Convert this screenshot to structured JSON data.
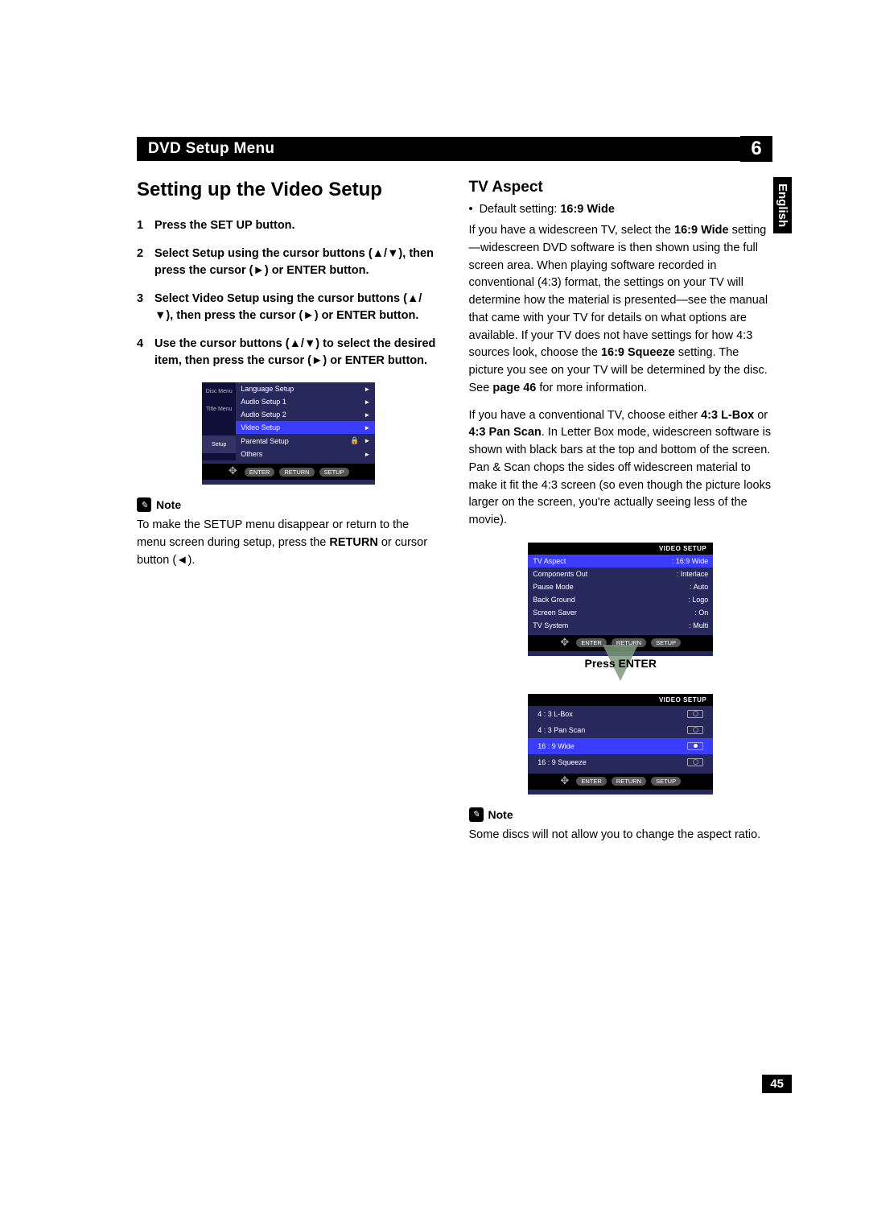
{
  "header": {
    "title": "DVD Setup Menu",
    "chapter_number": "6"
  },
  "lang_tab": "English",
  "page_number": "45",
  "left": {
    "section_title": "Setting up the Video Setup",
    "steps": [
      {
        "text_before": "Press the SET UP button."
      },
      {
        "text_before": "Select ",
        "bold1": "Setup",
        "text_mid": " using the cursor buttons (▲/▼), then press the cursor (►) or ENTER button."
      },
      {
        "text_before": "Select ",
        "bold1": "Video Setup",
        "text_mid": " using the cursor buttons (▲/▼), then press the cursor (►) or ENTER button."
      },
      {
        "text_before": "Use the cursor buttons (▲/▼) to select the desired item, then press the cursor (►) or ENTER button."
      }
    ],
    "osd1": {
      "side": [
        "Disc Menu",
        "Title Menu",
        "",
        "Setup"
      ],
      "rows": [
        {
          "label": "Language Setup",
          "hl": false
        },
        {
          "label": "Audio Setup 1",
          "hl": false
        },
        {
          "label": "Audio Setup 2",
          "hl": false
        },
        {
          "label": "Video Setup",
          "hl": true
        },
        {
          "label": "Parental Setup",
          "hl": false,
          "lock": true
        },
        {
          "label": "Others",
          "hl": false
        }
      ],
      "btns": [
        "ENTER",
        "RETURN",
        "SETUP"
      ]
    },
    "note_label": "Note",
    "note_text_a": "To make the SETUP menu disappear or return to the menu screen during setup, press the ",
    "note_bold": "RETURN",
    "note_text_b": " or cursor button (◄)."
  },
  "right": {
    "sub_title": "TV Aspect",
    "bullet_a": "Default setting: ",
    "bullet_bold": "16:9 Wide",
    "para1_a": "If you have a widescreen TV, select the ",
    "para1_b1": "16:9 Wide",
    "para1_b": " setting—widescreen DVD software is then shown using the full screen area. When playing software recorded in conventional (4:3) format, the settings on your TV will determine how the material is presented—see the manual that came with your TV for details on what options are available. If your TV does not have settings for how 4:3 sources look, choose the ",
    "para1_b2": "16:9 Squeeze",
    "para1_c": " setting. The picture you see on your TV will be determined by the disc. See ",
    "para1_b3": "page 46",
    "para1_d": " for more information.",
    "para2_a": "If you have a conventional TV, choose either ",
    "para2_b1": "4:3 L-Box",
    "para2_b": " or ",
    "para2_b2": "4:3 Pan Scan",
    "para2_c": ". In Letter Box mode, widescreen software is shown with black bars at the top and bottom of the screen. Pan & Scan chops the sides off widescreen material to make it fit the 4:3 screen (so even though the picture looks larger on the screen, you're actually seeing less of the movie).",
    "osd2": {
      "header": "VIDEO SETUP",
      "rows": [
        {
          "label": "TV Aspect",
          "val": "16:9  Wide",
          "hl": true
        },
        {
          "label": "Components Out",
          "val": "Interlace"
        },
        {
          "label": "Pause Mode",
          "val": "Auto"
        },
        {
          "label": "Back Ground",
          "val": "Logo"
        },
        {
          "label": "Screen Saver",
          "val": "On"
        },
        {
          "label": "TV System",
          "val": "Multi"
        }
      ],
      "btns": [
        "ENTER",
        "RETURN",
        "SETUP"
      ]
    },
    "press_enter": "Press ENTER",
    "osd3": {
      "header": "VIDEO SETUP",
      "options": [
        {
          "label": "4 : 3 L-Box",
          "sel": false
        },
        {
          "label": "4 : 3 Pan Scan",
          "sel": false
        },
        {
          "label": "16 : 9 Wide",
          "sel": true,
          "hl": true
        },
        {
          "label": "16 : 9 Squeeze",
          "sel": false
        }
      ],
      "btns": [
        "ENTER",
        "RETURN",
        "SETUP"
      ]
    },
    "note_label": "Note",
    "note_text": "Some discs will not allow you to change the aspect ratio."
  }
}
